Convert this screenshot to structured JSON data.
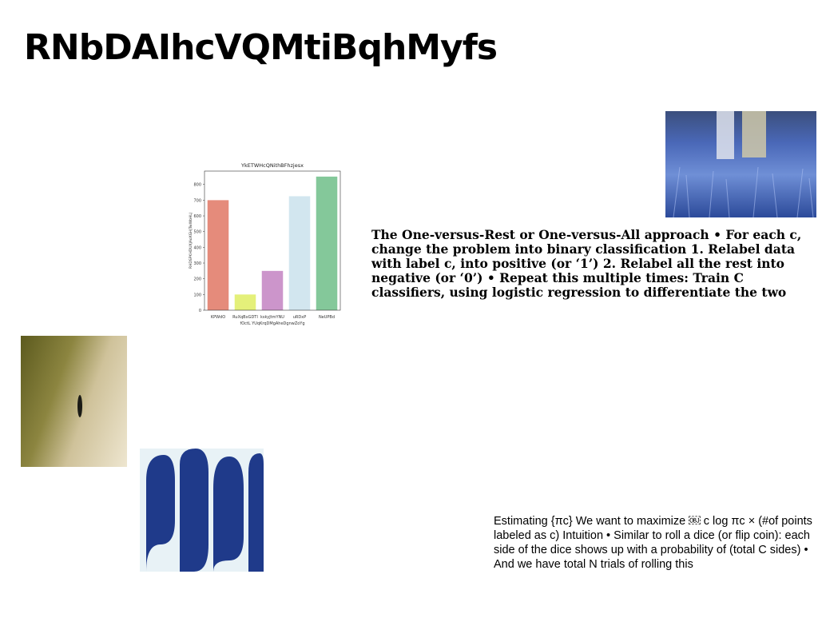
{
  "page": {
    "title": "RNbDAIhcVQMtiBqhMyfs",
    "paragraph_1": "The One-versus-Rest or One-versus-All approach • For each c, change the problem into binary classification 1. Relabel data with label c, into positive (or ‘1’) 2. Relabel all the rest into negative (or ‘0’) • Repeat this multiple times: Train C classifiers, using logistic regression to differentiate the two",
    "paragraph_2": "Estimating {πc} We want to maximize ￼ c log πc × (#of points labeled as c) Intuition • Similar to roll a dice (or flip coin): each side of the dice shows up with a probability of (total C sides) • And we have total N trials of rolling this"
  },
  "images": [
    {
      "name": "photo-blue-field",
      "palette": [
        "#2c4a9a",
        "#7d97d8"
      ]
    },
    {
      "name": "photo-sepia-texture",
      "palette": [
        "#6d6a25",
        "#e6dcc2"
      ]
    },
    {
      "name": "photo-blue-waves",
      "palette": [
        "#1f3a8a",
        "#e8f2f6"
      ]
    }
  ],
  "chart_data": {
    "type": "bar",
    "title": "YkETWHcQNithBFhzjesx",
    "xlabel": "fOctL YUqKrqDMgAheDgnwZoYg",
    "ylabel": "RHDSPKHDUXJAoXGHJTwWbHLJ",
    "categories": [
      "KPWdO",
      "RuXqBxGDTI",
      "kskyJtmYNU",
      "uRDxP",
      "NeUPBd"
    ],
    "values": [
      700,
      100,
      250,
      725,
      850
    ],
    "colors": [
      "#e58b7b",
      "#e4f07a",
      "#cc95cb",
      "#d2e6ef",
      "#84c89a"
    ],
    "yticks": [
      0,
      100,
      200,
      300,
      400,
      500,
      600,
      700,
      800
    ],
    "ylim": [
      0,
      885
    ],
    "grid": false
  }
}
